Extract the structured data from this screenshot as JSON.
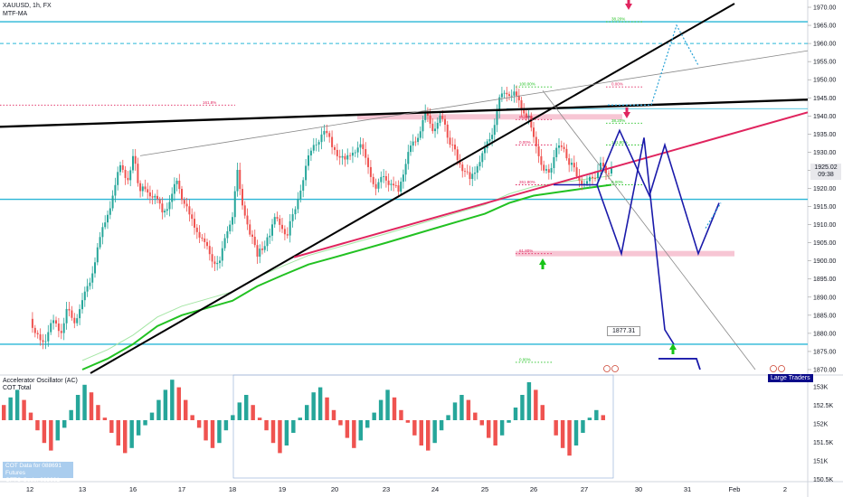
{
  "header": {
    "symbol_line": "XAUUSD, 1h, FX",
    "indicator_line": "MTF-MA"
  },
  "chart_data": {
    "type": "line",
    "price_axis": {
      "ticks": [
        1970,
        1965,
        1960,
        1955,
        1950,
        1945,
        1940,
        1935,
        1930,
        1925,
        1920,
        1915,
        1910,
        1905,
        1900,
        1895,
        1890,
        1885,
        1880,
        1875,
        1870
      ],
      "tick_labels": [
        "1970.00",
        "1965.00",
        "1960.00",
        "1955.00",
        "1950.00",
        "1945.00",
        "1940.00",
        "1935.00",
        "1930.00",
        "1925.00",
        "1920.00",
        "1915.00",
        "1910.00",
        "1905.00",
        "1900.00",
        "1895.00",
        "1890.00",
        "1885.00",
        "1880.00",
        "1875.00",
        "1870.00"
      ],
      "ylim": [
        1869,
        1971
      ]
    },
    "time_axis": {
      "labels": [
        "12",
        "13",
        "16",
        "17",
        "18",
        "19",
        "20",
        "23",
        "24",
        "25",
        "26",
        "27",
        "30",
        "31",
        "Feb",
        "2"
      ],
      "positions": [
        0,
        1,
        2,
        3,
        4,
        5,
        6,
        7,
        8,
        9,
        10,
        11,
        12,
        13,
        14,
        15
      ]
    },
    "price_series": {
      "name": "",
      "x": [
        0,
        0.1,
        0.2,
        0.3,
        0.45,
        0.6,
        0.7,
        0.85,
        1.0,
        1.15,
        1.3,
        1.45,
        1.6,
        1.75,
        1.9,
        2.0,
        2.05,
        2.15,
        2.3,
        2.45,
        2.6,
        2.75,
        2.9,
        3.0,
        3.15,
        3.3,
        3.45,
        3.6,
        3.75,
        3.9,
        4.0,
        4.1,
        4.3,
        4.5,
        4.7,
        4.85,
        5.0,
        5.1,
        5.3,
        5.5,
        5.7,
        5.8,
        5.95,
        6.05,
        6.2,
        6.35,
        6.5,
        6.65,
        6.8,
        6.95,
        7.1,
        7.25,
        7.35,
        7.5,
        7.65,
        7.8,
        7.95,
        8.1,
        8.2,
        8.3,
        8.45,
        8.55,
        8.7,
        8.85,
        9.0,
        9.15,
        9.3,
        9.45,
        9.6,
        9.75,
        9.9,
        10.0,
        10.1,
        10.2,
        10.3,
        10.45,
        10.6,
        10.7,
        10.85,
        11.0,
        11.1,
        11.2,
        11.3,
        11.4,
        11.5
      ],
      "y": [
        1884,
        1881,
        1877,
        1879,
        1883,
        1881,
        1886,
        1884,
        1888,
        1895,
        1903,
        1911,
        1918,
        1926,
        1923,
        1928,
        1926,
        1919,
        1920,
        1917,
        1914,
        1916,
        1922,
        1918,
        1912,
        1909,
        1904,
        1901,
        1899,
        1909,
        1913,
        1924,
        1909,
        1902,
        1906,
        1911,
        1910,
        1907,
        1918,
        1928,
        1934,
        1937,
        1931,
        1930,
        1927,
        1931,
        1931,
        1927,
        1919,
        1924,
        1921,
        1919,
        1925,
        1931,
        1935,
        1940,
        1937,
        1939,
        1937,
        1933,
        1928,
        1926,
        1922,
        1927,
        1930,
        1936,
        1944,
        1947,
        1946,
        1942,
        1940,
        1933,
        1930,
        1924,
        1925,
        1930,
        1932,
        1927,
        1924,
        1921,
        1922,
        1924,
        1926,
        1925,
        1925.02
      ]
    },
    "moving_average": {
      "name": "",
      "x": [
        1.0,
        1.5,
        2.0,
        2.5,
        3.0,
        3.5,
        4.0,
        4.5,
        5.0,
        5.5,
        6.0,
        6.5,
        7.0,
        7.5,
        8.0,
        8.5,
        9.0,
        9.5,
        10.0,
        10.5,
        11.0,
        11.5
      ],
      "y": [
        1870,
        1873,
        1877,
        1882,
        1885,
        1887,
        1889,
        1893,
        1896,
        1899,
        1901,
        1903,
        1905,
        1907,
        1909,
        1911,
        1913,
        1916,
        1918,
        1919,
        1920,
        1921
      ]
    },
    "oscillator": {
      "name": "Accelerator Oscillator (AC)",
      "secondary_name": "COT Total",
      "axis_ticks": [
        "153K",
        "152.5K",
        "152K",
        "151.5K",
        "151K",
        "150.5K"
      ],
      "values": [
        0.6,
        0.9,
        1.2,
        0.8,
        0.3,
        -0.4,
        -0.9,
        -1.2,
        -0.8,
        -0.3,
        0.4,
        1.0,
        1.4,
        1.1,
        0.6,
        0.1,
        -0.5,
        -1.0,
        -1.3,
        -1.1,
        -0.6,
        -0.2,
        0.3,
        0.8,
        1.2,
        1.6,
        1.3,
        0.8,
        0.2,
        -0.3,
        -0.8,
        -1.1,
        -0.9,
        -0.4,
        0.2,
        0.7,
        1.0,
        0.6,
        0.1,
        -0.4,
        -0.9,
        -1.3,
        -1.0,
        -0.5,
        0.1,
        0.6,
        1.1,
        1.3,
        0.9,
        0.4,
        -0.2,
        -0.7,
        -1.1,
        -0.8,
        -0.3,
        0.3,
        0.8,
        1.2,
        0.9,
        0.4,
        -0.1,
        -0.6,
        -1.0,
        -1.2,
        -0.9,
        -0.4,
        0.2,
        0.7,
        1.0,
        0.8,
        0.3,
        -0.2,
        -0.7,
        -1.0,
        -0.6,
        -0.1,
        0.5,
        1.0,
        1.5,
        1.2,
        0.6,
        0.0,
        -0.6,
        -1.1,
        -1.4,
        -1.0,
        -0.5,
        0.1,
        0.4,
        0.2
      ]
    },
    "fib_labels": [
      "161.8%",
      "100.00%",
      "0.00%",
      "38.20%",
      "61.80%",
      "38.20%",
      "0.00%",
      "161.80%",
      "261.80%",
      "0.00%",
      "61.80%",
      "0.00%"
    ],
    "annotations": {
      "callout": "1877.31",
      "last_price": "1925.02",
      "countdown": "09:38"
    },
    "cot_box_lines": [
      "COT Data for 088691 Futures",
      "CFTC Code: 088691"
    ],
    "large_traders": "Large Traders",
    "colors": {
      "up_candle": "#26a69a",
      "down_candle": "#ef5350",
      "ma_green": "#22c122",
      "trend_red": "#e0245e",
      "trend_black": "#000000",
      "horizontal_cyan": "#29b6d6",
      "projection_blue": "#1a1aaa",
      "projection_dotted": "#29a3d6",
      "zone_pink": "#f7c6d4",
      "arrow_green": "#18c418",
      "arrow_pink": "#e0245e"
    }
  }
}
